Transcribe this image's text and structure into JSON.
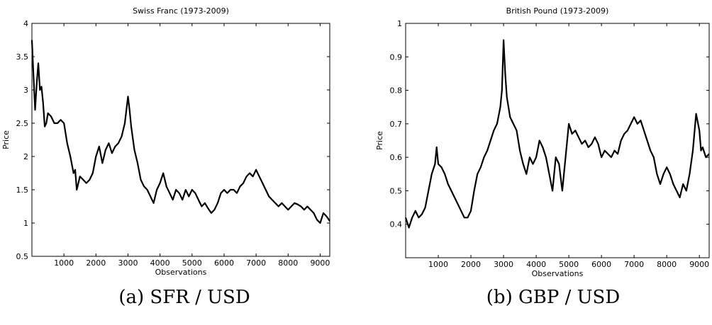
{
  "chart_data": [
    {
      "type": "line",
      "title": "Swiss Franc (1973-2009)",
      "xlabel": "Observations",
      "ylabel": "Price",
      "xlim": [
        0,
        9300
      ],
      "ylim": [
        0.5,
        4
      ],
      "xticks": [
        1000,
        2000,
        3000,
        4000,
        5000,
        6000,
        7000,
        8000,
        9000
      ],
      "yticks": [
        0.5,
        1,
        1.5,
        2,
        2.5,
        3,
        3.5,
        4
      ],
      "ytick_labels": [
        "0.5",
        "1",
        "1.5",
        "2",
        "2.5",
        "3",
        "3.5",
        "4"
      ],
      "grid": false,
      "series": [
        {
          "x": [
            0,
            50,
            100,
            150,
            200,
            250,
            300,
            350,
            400,
            450,
            500,
            600,
            700,
            800,
            900,
            1000,
            1100,
            1200,
            1300,
            1350,
            1400,
            1450,
            1500,
            1600,
            1700,
            1800,
            1900,
            2000,
            2100,
            2200,
            2300,
            2400,
            2500,
            2600,
            2700,
            2800,
            2900,
            3000,
            3050,
            3100,
            3200,
            3300,
            3400,
            3500,
            3600,
            3700,
            3800,
            3900,
            4000,
            4100,
            4200,
            4300,
            4400,
            4500,
            4600,
            4700,
            4800,
            4900,
            5000,
            5100,
            5200,
            5300,
            5400,
            5500,
            5600,
            5700,
            5800,
            5900,
            6000,
            6100,
            6200,
            6300,
            6400,
            6500,
            6600,
            6700,
            6800,
            6900,
            7000,
            7100,
            7200,
            7300,
            7400,
            7500,
            7600,
            7700,
            7800,
            7900,
            8000,
            8100,
            8200,
            8300,
            8400,
            8500,
            8600,
            8700,
            8800,
            8900,
            9000,
            9100,
            9200,
            9300
          ],
          "y": [
            3.75,
            3.2,
            2.7,
            3.1,
            3.4,
            3.0,
            3.05,
            2.8,
            2.45,
            2.5,
            2.65,
            2.6,
            2.5,
            2.5,
            2.55,
            2.5,
            2.2,
            2.0,
            1.75,
            1.8,
            1.5,
            1.6,
            1.7,
            1.65,
            1.6,
            1.65,
            1.75,
            2.0,
            2.15,
            1.9,
            2.1,
            2.2,
            2.05,
            2.15,
            2.2,
            2.3,
            2.5,
            2.9,
            2.7,
            2.45,
            2.1,
            1.9,
            1.65,
            1.55,
            1.5,
            1.4,
            1.3,
            1.5,
            1.6,
            1.75,
            1.55,
            1.45,
            1.35,
            1.5,
            1.45,
            1.35,
            1.5,
            1.4,
            1.5,
            1.45,
            1.35,
            1.25,
            1.3,
            1.22,
            1.15,
            1.2,
            1.3,
            1.45,
            1.5,
            1.45,
            1.5,
            1.5,
            1.45,
            1.55,
            1.6,
            1.7,
            1.75,
            1.7,
            1.8,
            1.7,
            1.6,
            1.5,
            1.4,
            1.35,
            1.3,
            1.25,
            1.3,
            1.25,
            1.2,
            1.25,
            1.3,
            1.28,
            1.25,
            1.2,
            1.25,
            1.2,
            1.15,
            1.05,
            1.0,
            1.15,
            1.1,
            1.03
          ]
        }
      ]
    },
    {
      "type": "line",
      "title": "British Pound (1973-2009)",
      "xlabel": "Observations",
      "ylabel": "Price",
      "xlim": [
        0,
        9300
      ],
      "ylim": [
        0.3,
        1
      ],
      "xticks": [
        1000,
        2000,
        3000,
        4000,
        5000,
        6000,
        7000,
        8000,
        9000
      ],
      "yticks": [
        0.4,
        0.5,
        0.6,
        0.7,
        0.8,
        0.9,
        1
      ],
      "ytick_labels": [
        "0.4",
        "0.5",
        "0.6",
        "0.7",
        "0.8",
        "0.9",
        "1"
      ],
      "grid": false,
      "series": [
        {
          "x": [
            0,
            100,
            200,
            300,
            400,
            500,
            600,
            700,
            800,
            900,
            950,
            1000,
            1100,
            1200,
            1300,
            1400,
            1500,
            1600,
            1700,
            1800,
            1900,
            2000,
            2100,
            2200,
            2300,
            2400,
            2500,
            2600,
            2700,
            2800,
            2900,
            2950,
            3000,
            3050,
            3100,
            3200,
            3300,
            3400,
            3500,
            3600,
            3700,
            3800,
            3900,
            4000,
            4100,
            4200,
            4300,
            4400,
            4500,
            4600,
            4700,
            4800,
            4900,
            5000,
            5100,
            5200,
            5300,
            5400,
            5500,
            5600,
            5700,
            5800,
            5900,
            6000,
            6100,
            6200,
            6300,
            6400,
            6500,
            6600,
            6700,
            6800,
            6900,
            7000,
            7100,
            7200,
            7300,
            7400,
            7500,
            7600,
            7700,
            7800,
            7900,
            8000,
            8100,
            8200,
            8300,
            8400,
            8500,
            8600,
            8700,
            8800,
            8900,
            9000,
            9050,
            9100,
            9200,
            9300
          ],
          "y": [
            0.42,
            0.39,
            0.42,
            0.44,
            0.42,
            0.43,
            0.45,
            0.5,
            0.55,
            0.58,
            0.63,
            0.58,
            0.57,
            0.55,
            0.52,
            0.5,
            0.48,
            0.46,
            0.44,
            0.42,
            0.42,
            0.44,
            0.5,
            0.55,
            0.57,
            0.6,
            0.62,
            0.65,
            0.68,
            0.7,
            0.75,
            0.8,
            0.95,
            0.85,
            0.78,
            0.72,
            0.7,
            0.68,
            0.62,
            0.58,
            0.55,
            0.6,
            0.58,
            0.6,
            0.65,
            0.63,
            0.6,
            0.55,
            0.5,
            0.6,
            0.58,
            0.5,
            0.6,
            0.7,
            0.67,
            0.68,
            0.66,
            0.64,
            0.65,
            0.63,
            0.64,
            0.66,
            0.64,
            0.6,
            0.62,
            0.61,
            0.6,
            0.62,
            0.61,
            0.65,
            0.67,
            0.68,
            0.7,
            0.72,
            0.7,
            0.71,
            0.68,
            0.65,
            0.62,
            0.6,
            0.55,
            0.52,
            0.55,
            0.57,
            0.55,
            0.52,
            0.5,
            0.48,
            0.52,
            0.5,
            0.55,
            0.62,
            0.73,
            0.68,
            0.62,
            0.63,
            0.6,
            0.61
          ]
        }
      ]
    }
  ],
  "captions": [
    "(a) SFR / USD",
    "(b) GBP / USD"
  ]
}
